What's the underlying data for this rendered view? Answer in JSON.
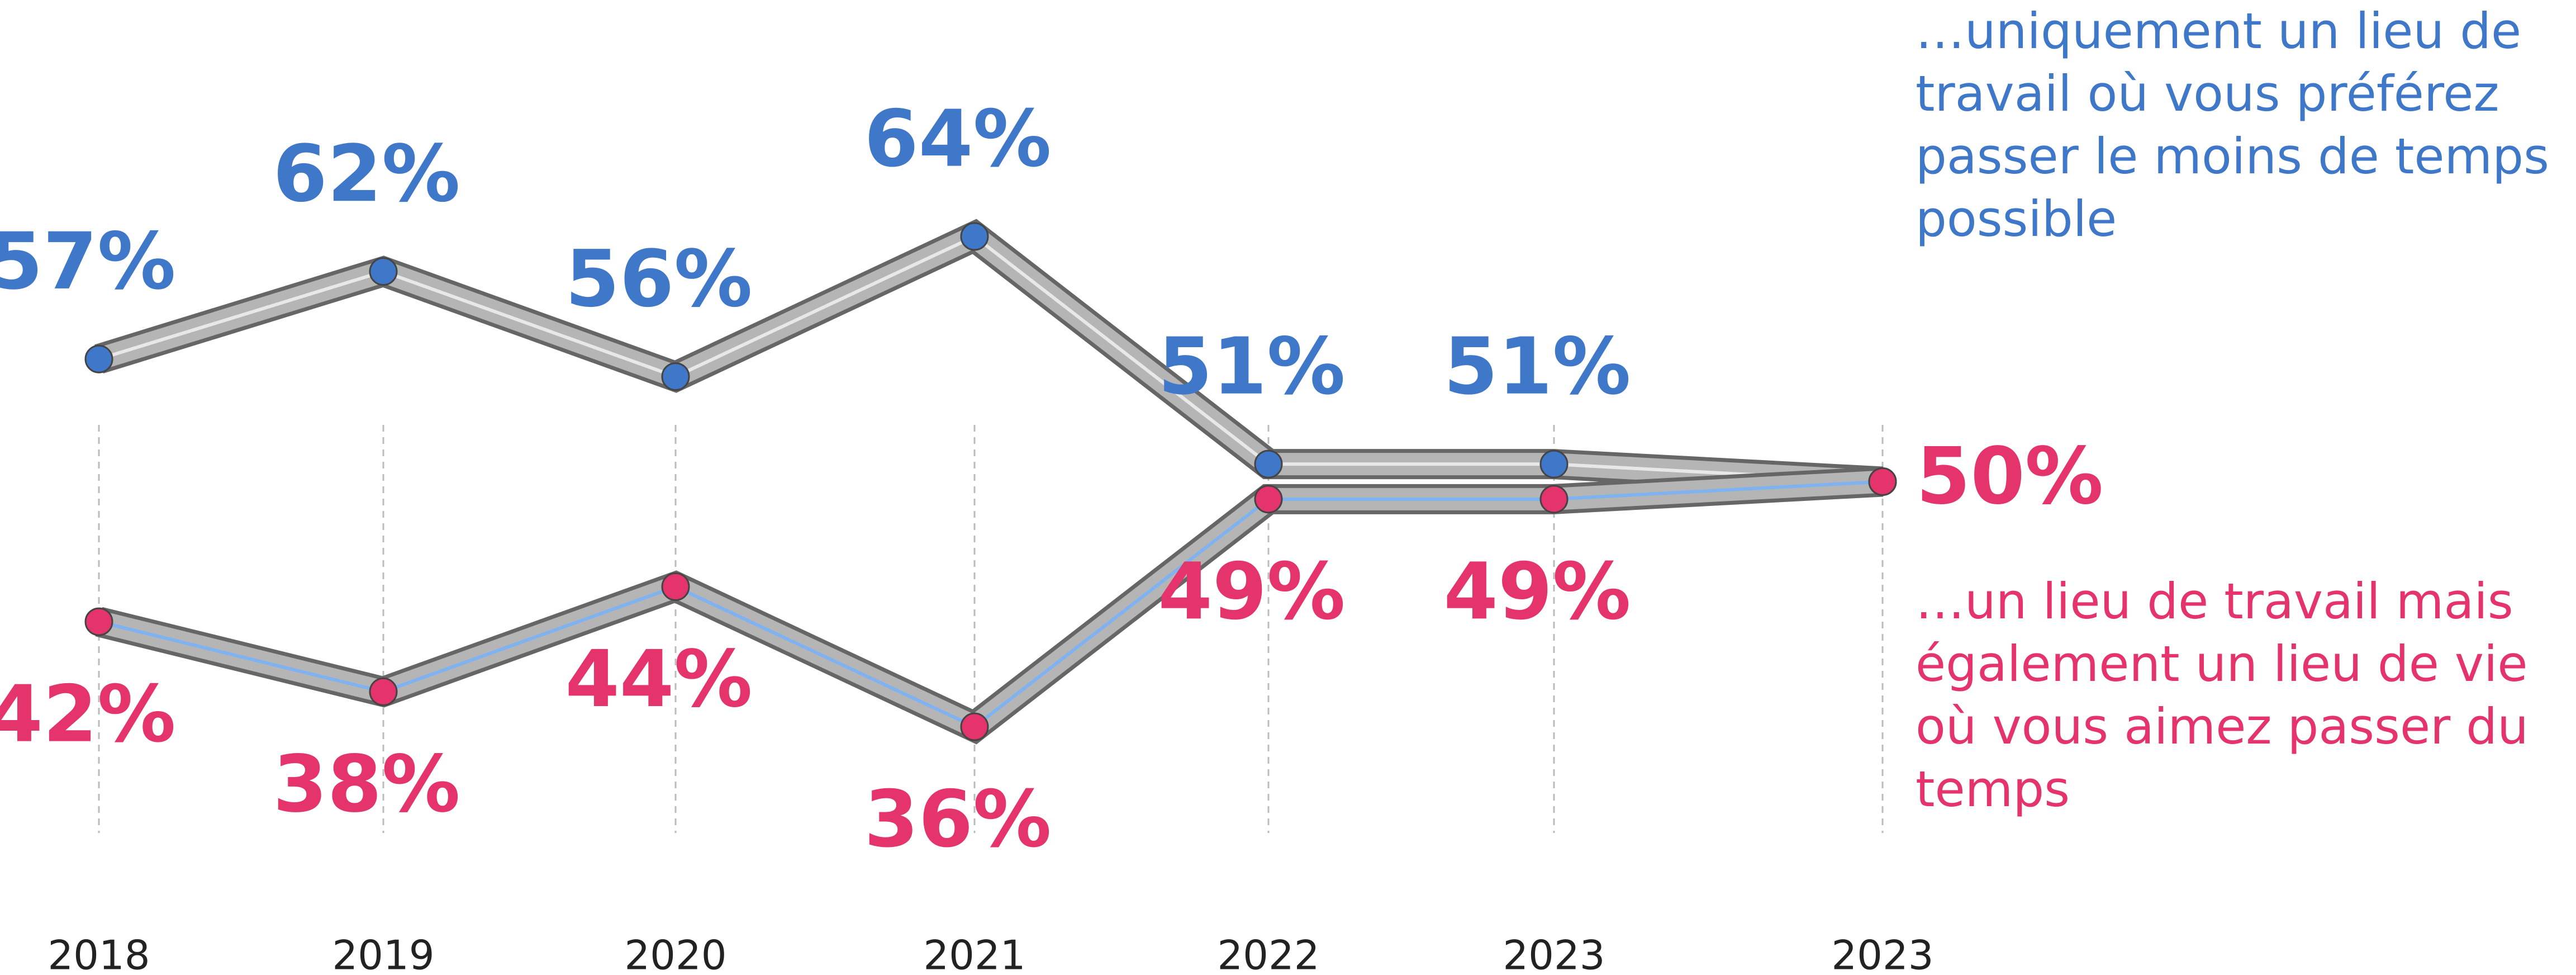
{
  "chart_data": {
    "type": "line",
    "categories": [
      "2018",
      "2019",
      "2020",
      "2021",
      "2022",
      "2023",
      "2023"
    ],
    "series": [
      {
        "name": "…uniquement un lieu de travail où vous préférez passer le moins de temps possible",
        "color": "#3f78c9",
        "values": [
          57,
          62,
          56,
          64,
          51,
          51,
          50
        ],
        "value_labels": [
          "57%",
          "62%",
          "56%",
          "64%",
          "51%",
          "51%",
          null
        ]
      },
      {
        "name": "…un lieu de travail mais également un lieu de vie où vous aimez passer du temps",
        "color": "#e5336b",
        "values": [
          42,
          38,
          44,
          36,
          49,
          49,
          50
        ],
        "value_labels": [
          "42%",
          "38%",
          "44%",
          "36%",
          "49%",
          "49%",
          "50%"
        ]
      }
    ]
  }
}
